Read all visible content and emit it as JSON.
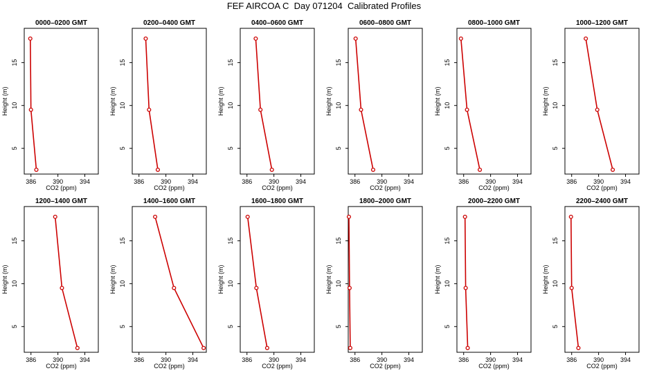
{
  "page": {
    "title": "FEF AIRCOA C  Day 071204  Calibrated Profiles"
  },
  "chart_data": [
    {
      "type": "line",
      "title": "0000–0200 GMT",
      "xlabel": "CO2 (ppm)",
      "ylabel": "Height (m)",
      "xlim": [
        385,
        396
      ],
      "ylim": [
        2,
        19
      ],
      "xticks": [
        386,
        390,
        394
      ],
      "yticks": [
        5,
        10,
        15
      ],
      "grid": false,
      "color": "#cc0000",
      "x": [
        385.9,
        386.0,
        386.8
      ],
      "y": [
        17.8,
        9.5,
        2.5
      ]
    },
    {
      "type": "line",
      "title": "0200–0400 GMT",
      "xlabel": "CO2 (ppm)",
      "ylabel": "Height (m)",
      "xlim": [
        385,
        396
      ],
      "ylim": [
        2,
        19
      ],
      "xticks": [
        386,
        390,
        394
      ],
      "yticks": [
        5,
        10,
        15
      ],
      "grid": false,
      "color": "#cc0000",
      "x": [
        387.0,
        387.5,
        388.8
      ],
      "y": [
        17.8,
        9.5,
        2.5
      ]
    },
    {
      "type": "line",
      "title": "0400–0600 GMT",
      "xlabel": "CO2 (ppm)",
      "ylabel": "Height (m)",
      "xlim": [
        385,
        396
      ],
      "ylim": [
        2,
        19
      ],
      "xticks": [
        386,
        390,
        394
      ],
      "yticks": [
        5,
        10,
        15
      ],
      "grid": false,
      "color": "#cc0000",
      "x": [
        387.3,
        388.0,
        389.7
      ],
      "y": [
        17.8,
        9.5,
        2.5
      ]
    },
    {
      "type": "line",
      "title": "0600–0800 GMT",
      "xlabel": "CO2 (ppm)",
      "ylabel": "Height (m)",
      "xlim": [
        385,
        396
      ],
      "ylim": [
        2,
        19
      ],
      "xticks": [
        386,
        390,
        394
      ],
      "yticks": [
        5,
        10,
        15
      ],
      "grid": false,
      "color": "#cc0000",
      "x": [
        386.1,
        386.9,
        388.7
      ],
      "y": [
        17.8,
        9.5,
        2.5
      ]
    },
    {
      "type": "line",
      "title": "0800–1000 GMT",
      "xlabel": "CO2 (ppm)",
      "ylabel": "Height (m)",
      "xlim": [
        385,
        396
      ],
      "ylim": [
        2,
        19
      ],
      "xticks": [
        386,
        390,
        394
      ],
      "yticks": [
        5,
        10,
        15
      ],
      "grid": false,
      "color": "#cc0000",
      "x": [
        385.6,
        386.5,
        388.4
      ],
      "y": [
        17.8,
        9.5,
        2.5
      ]
    },
    {
      "type": "line",
      "title": "1000–1200 GMT",
      "xlabel": "CO2 (ppm)",
      "ylabel": "Height (m)",
      "xlim": [
        385,
        396
      ],
      "ylim": [
        2,
        19
      ],
      "xticks": [
        386,
        390,
        394
      ],
      "yticks": [
        5,
        10,
        15
      ],
      "grid": false,
      "color": "#cc0000",
      "x": [
        388.1,
        389.8,
        392.1
      ],
      "y": [
        17.8,
        9.5,
        2.5
      ]
    },
    {
      "type": "line",
      "title": "1200–1400 GMT",
      "xlabel": "CO2 (ppm)",
      "ylabel": "Height (m)",
      "xlim": [
        385,
        396
      ],
      "ylim": [
        2,
        19
      ],
      "xticks": [
        386,
        390,
        394
      ],
      "yticks": [
        5,
        10,
        15
      ],
      "grid": false,
      "color": "#cc0000",
      "x": [
        389.6,
        390.6,
        392.9
      ],
      "y": [
        17.8,
        9.5,
        2.5
      ]
    },
    {
      "type": "line",
      "title": "1400–1600 GMT",
      "xlabel": "CO2 (ppm)",
      "ylabel": "Height (m)",
      "xlim": [
        385,
        396
      ],
      "ylim": [
        2,
        19
      ],
      "xticks": [
        386,
        390,
        394
      ],
      "yticks": [
        5,
        10,
        15
      ],
      "grid": false,
      "color": "#cc0000",
      "x": [
        388.4,
        391.2,
        395.6
      ],
      "y": [
        17.8,
        9.5,
        2.5
      ]
    },
    {
      "type": "line",
      "title": "1600–1800 GMT",
      "xlabel": "CO2 (ppm)",
      "ylabel": "Height (m)",
      "xlim": [
        385,
        396
      ],
      "ylim": [
        2,
        19
      ],
      "xticks": [
        386,
        390,
        394
      ],
      "yticks": [
        5,
        10,
        15
      ],
      "grid": false,
      "color": "#cc0000",
      "x": [
        386.1,
        387.4,
        389.0
      ],
      "y": [
        17.8,
        9.5,
        2.5
      ]
    },
    {
      "type": "line",
      "title": "1800–2000 GMT",
      "xlabel": "CO2 (ppm)",
      "ylabel": "Height (m)",
      "xlim": [
        385,
        396
      ],
      "ylim": [
        2,
        19
      ],
      "xticks": [
        386,
        390,
        394
      ],
      "yticks": [
        5,
        10,
        15
      ],
      "grid": false,
      "color": "#cc0000",
      "x": [
        385.1,
        385.2,
        385.3
      ],
      "y": [
        17.8,
        9.5,
        2.5
      ]
    },
    {
      "type": "line",
      "title": "2000–2200 GMT",
      "xlabel": "CO2 (ppm)",
      "ylabel": "Height (m)",
      "xlim": [
        385,
        396
      ],
      "ylim": [
        2,
        19
      ],
      "xticks": [
        386,
        390,
        394
      ],
      "yticks": [
        5,
        10,
        15
      ],
      "grid": false,
      "color": "#cc0000",
      "x": [
        386.2,
        386.3,
        386.6
      ],
      "y": [
        17.8,
        9.5,
        2.5
      ]
    },
    {
      "type": "line",
      "title": "2200–2400 GMT",
      "xlabel": "CO2 (ppm)",
      "ylabel": "Height (m)",
      "xlim": [
        385,
        396
      ],
      "ylim": [
        2,
        19
      ],
      "xticks": [
        386,
        390,
        394
      ],
      "yticks": [
        5,
        10,
        15
      ],
      "grid": false,
      "color": "#cc0000",
      "x": [
        385.9,
        386.0,
        387.0
      ],
      "y": [
        17.8,
        9.5,
        2.5
      ]
    }
  ]
}
